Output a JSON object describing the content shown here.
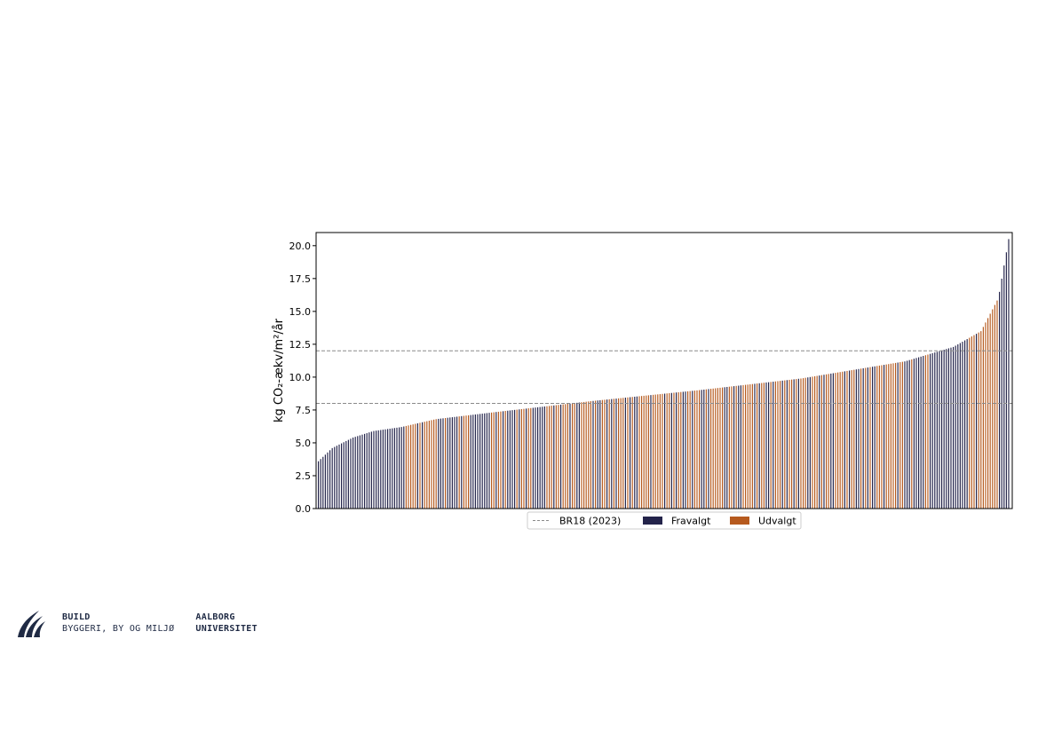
{
  "chart_data": {
    "type": "bar",
    "ylabel": "kg CO₂-ækv/m²/år",
    "ylim": [
      0,
      21
    ],
    "yticks": [
      "0.0",
      "2.5",
      "5.0",
      "7.5",
      "10.0",
      "12.5",
      "15.0",
      "17.5",
      "20.0"
    ],
    "grid": false,
    "legend_placement": "bottom-center",
    "reference_lines": [
      {
        "name": "BR18 (2023)",
        "values": [
          8.0,
          12.0
        ],
        "style": "dashed",
        "color": "#888888"
      }
    ],
    "series": [
      {
        "name": "Fravalgt",
        "color": "#23234a",
        "values_at_rank_fraction": [
          [
            0.0,
            3.6
          ],
          [
            0.02,
            4.6
          ],
          [
            0.05,
            5.4
          ],
          [
            0.08,
            5.9
          ],
          [
            0.12,
            6.2
          ],
          [
            0.17,
            6.8
          ],
          [
            0.25,
            7.3
          ],
          [
            0.4,
            8.2
          ],
          [
            0.55,
            9.0
          ],
          [
            0.7,
            9.9
          ],
          [
            0.85,
            11.2
          ],
          [
            0.92,
            12.3
          ],
          [
            0.96,
            13.5
          ],
          [
            0.985,
            16.0
          ],
          [
            1.0,
            20.5
          ]
        ]
      },
      {
        "name": "Udvalgt",
        "color": "#b65a1e",
        "values_at_rank_fraction": [
          [
            0.12,
            6.4
          ],
          [
            0.25,
            7.3
          ],
          [
            0.4,
            8.2
          ],
          [
            0.55,
            9.0
          ],
          [
            0.7,
            9.9
          ],
          [
            0.85,
            11.2
          ],
          [
            0.96,
            13.2
          ]
        ]
      }
    ]
  },
  "legend": {
    "line_label": "BR18 (2023)",
    "fravalgt_label": "Fravalgt",
    "udvalgt_label": "Udvalgt"
  },
  "logo": {
    "line1": "BUILD",
    "line2": "BYGGERI, BY OG MILJØ",
    "uni1": "AALBORG",
    "uni2": "UNIVERSITET"
  }
}
